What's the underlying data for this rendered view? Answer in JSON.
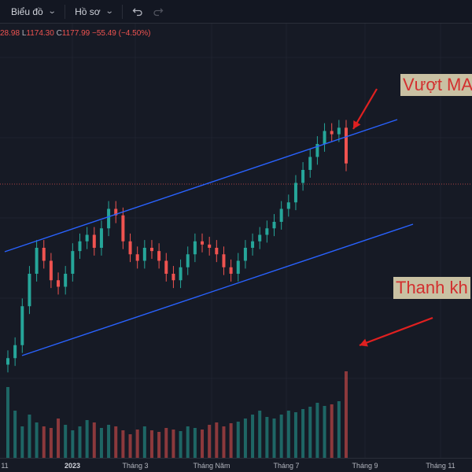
{
  "toolbar": {
    "chart_menu_label": "Biểu đồ",
    "profile_menu_label": "Hồ sơ",
    "undo_icon": "undo-icon",
    "redo_icon": "redo-icon"
  },
  "legend": {
    "open_fragment": "28.98",
    "low_key": "L",
    "low": "1174.30",
    "close_key": "C",
    "close": "1177.99",
    "change": "−55.49 (−4.50%)"
  },
  "annotations": {
    "top_right": "Vượt MA",
    "bottom_right": "Thanh kh"
  },
  "x_axis": {
    "labels": [
      "11",
      "2023",
      "Tháng 3",
      "Tháng Năm",
      "Tháng 7",
      "Tháng 9",
      "Tháng 11"
    ]
  },
  "colors": {
    "up": "#26a69a",
    "down": "#ef5350",
    "channel": "#2962ff",
    "arrow": "#e02020",
    "background": "#161a25"
  },
  "chart_data": {
    "type": "candlestick",
    "note_series": "price candles with volume bars and a drawn upward parallel channel",
    "close_series": [
      880,
      900,
      960,
      1010,
      1050,
      1030,
      1000,
      990,
      1010,
      1045,
      1060,
      1070,
      1050,
      1080,
      1110,
      1100,
      1060,
      1040,
      1030,
      1050,
      1045,
      1030,
      1010,
      1000,
      1020,
      1040,
      1060,
      1055,
      1050,
      1040,
      1020,
      1010,
      1030,
      1050,
      1060,
      1070,
      1080,
      1090,
      1110,
      1120,
      1150,
      1170,
      1190,
      1210,
      1230,
      1225,
      1235,
      1180
    ],
    "volume_series": [
      90,
      60,
      40,
      55,
      45,
      40,
      38,
      50,
      42,
      35,
      40,
      48,
      45,
      38,
      42,
      40,
      35,
      30,
      36,
      40,
      35,
      33,
      38,
      36,
      34,
      40,
      38,
      36,
      42,
      45,
      40,
      44,
      46,
      50,
      55,
      60,
      52,
      50,
      55,
      60,
      58,
      62,
      65,
      70,
      66,
      68,
      72,
      110
    ]
  }
}
